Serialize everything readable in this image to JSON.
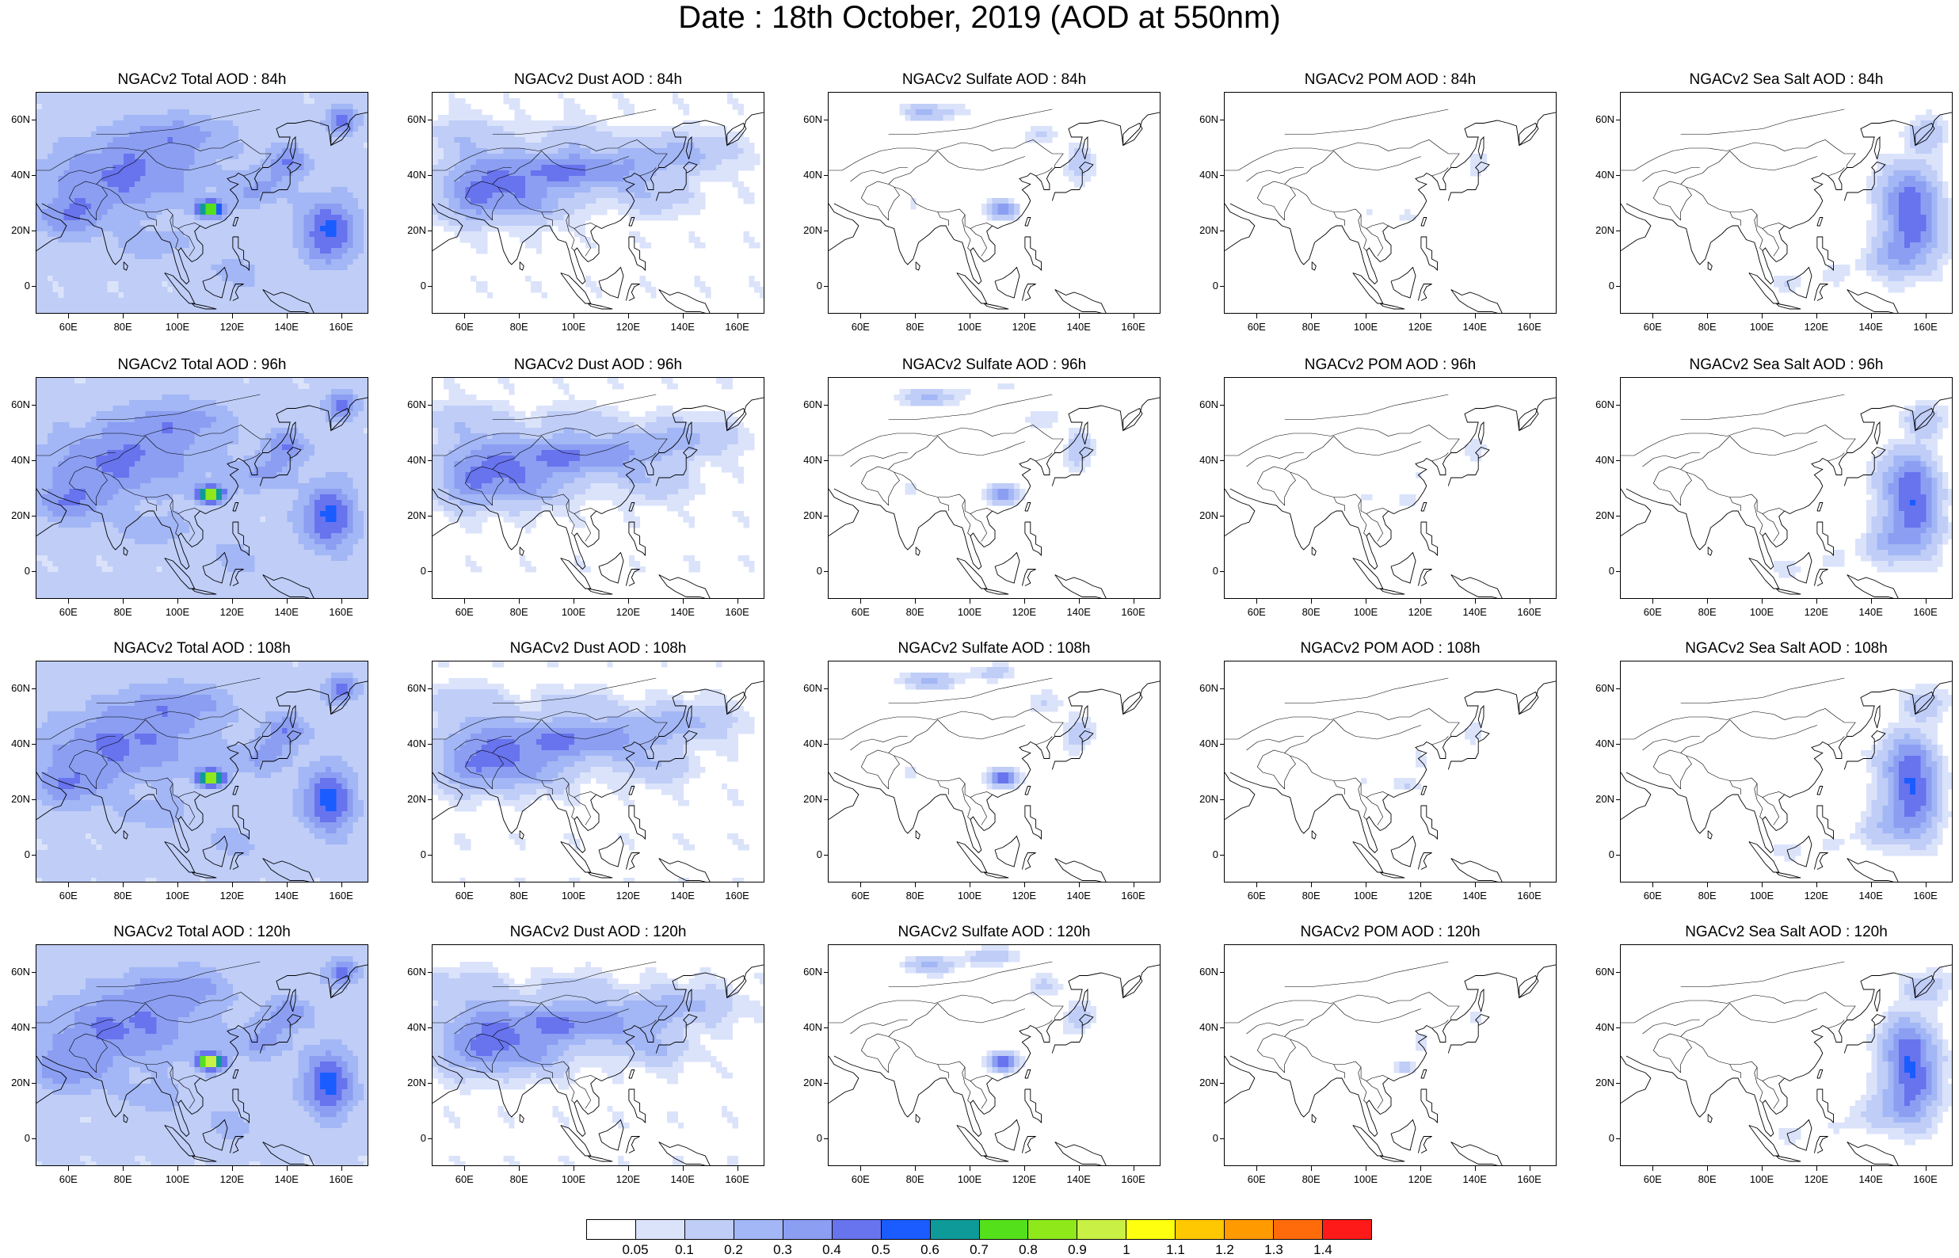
{
  "header": {
    "title": "Date : 18th October, 2019 (AOD at 550nm)"
  },
  "axes": {
    "lat_labels": [
      "60N",
      "40N",
      "20N",
      "0"
    ],
    "lon_labels": [
      "60E",
      "80E",
      "100E",
      "120E",
      "140E",
      "160E"
    ]
  },
  "panels": [
    [
      {
        "title": "NGACv2 Total AOD : 84h",
        "type": "total"
      },
      {
        "title": "NGACv2 Dust AOD : 84h",
        "type": "dust"
      },
      {
        "title": "NGACv2 Sulfate AOD : 84h",
        "type": "sulfate"
      },
      {
        "title": "NGACv2 POM AOD : 84h",
        "type": "pom"
      },
      {
        "title": "NGACv2 Sea Salt AOD : 84h",
        "type": "seasalt"
      }
    ],
    [
      {
        "title": "NGACv2 Total AOD : 96h",
        "type": "total"
      },
      {
        "title": "NGACv2 Dust AOD : 96h",
        "type": "dust"
      },
      {
        "title": "NGACv2 Sulfate AOD : 96h",
        "type": "sulfate"
      },
      {
        "title": "NGACv2 POM AOD : 96h",
        "type": "pom"
      },
      {
        "title": "NGACv2 Sea Salt AOD : 96h",
        "type": "seasalt"
      }
    ],
    [
      {
        "title": "NGACv2 Total AOD : 108h",
        "type": "total"
      },
      {
        "title": "NGACv2 Dust AOD : 108h",
        "type": "dust"
      },
      {
        "title": "NGACv2 Sulfate AOD : 108h",
        "type": "sulfate"
      },
      {
        "title": "NGACv2 POM AOD : 108h",
        "type": "pom"
      },
      {
        "title": "NGACv2 Sea Salt AOD : 108h",
        "type": "seasalt"
      }
    ],
    [
      {
        "title": "NGACv2 Total AOD : 120h",
        "type": "total"
      },
      {
        "title": "NGACv2 Dust AOD : 120h",
        "type": "dust"
      },
      {
        "title": "NGACv2 Sulfate AOD : 120h",
        "type": "sulfate"
      },
      {
        "title": "NGACv2 POM AOD : 120h",
        "type": "pom"
      },
      {
        "title": "NGACv2 Sea Salt  AOD : 120h",
        "type": "seasalt"
      }
    ]
  ],
  "colorbar": {
    "labels": [
      "0.05",
      "0.1",
      "0.2",
      "0.3",
      "0.4",
      "0.5",
      "0.6",
      "0.7",
      "0.8",
      "0.9",
      "1",
      "1.1",
      "1.2",
      "1.3",
      "1.4"
    ],
    "colors": [
      "#ffffff",
      "#dbe3fb",
      "#bfcdf7",
      "#a3b6f5",
      "#8b9ef2",
      "#6873ee",
      "#1a5cff",
      "#0f9a9a",
      "#55e01c",
      "#8ee81a",
      "#c9f044",
      "#ffff10",
      "#ffc800",
      "#ff9a00",
      "#ff6b0a",
      "#ff1a1a"
    ]
  }
}
